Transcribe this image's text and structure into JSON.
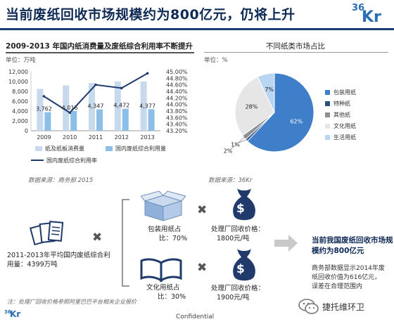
{
  "header": {
    "title": "当前废纸回收市场规模约为800亿元，仍将上升",
    "logo_small": "36",
    "logo_big": "Kr"
  },
  "left_chart": {
    "title": "2009-2013 年国内纸消费量及废纸综合利用率不断提升",
    "unit": "单位：万吨",
    "source": "数据来源：商务部 2015"
  },
  "right_chart": {
    "title": "不同纸类市场占比",
    "unit": "单位：%",
    "source": "数据来源：36Kr"
  },
  "chart_data": [
    {
      "type": "bar",
      "categories": [
        "2009",
        "2010",
        "2011",
        "2012",
        "2013"
      ],
      "series": [
        {
          "name": "纸及纸板消费量",
          "type": "bar",
          "values": [
            8500,
            9200,
            9700,
            10000,
            10000
          ],
          "color": "#c7d9ec"
        },
        {
          "name": "国内废纸综合利用量",
          "type": "bar",
          "values": [
            3762,
            4016,
            4347,
            4472,
            4377
          ],
          "color": "#8cbfe8"
        },
        {
          "name": "国内废纸综合利用率",
          "type": "line",
          "axis": "right",
          "values": [
            44.25,
            43.75,
            44.6,
            44.5,
            44.95
          ],
          "color": "#1f3a6b"
        }
      ],
      "data_labels": [
        "3,762",
        "4,016",
        "4,347",
        "4,472",
        "4,377"
      ],
      "ylim": [
        0,
        12000
      ],
      "yticks": [
        "0",
        "2,000",
        "4,000",
        "6,000",
        "8,000",
        "10,000",
        "12,000"
      ],
      "y2lim": [
        43.2,
        45.0
      ],
      "y2ticks": [
        "43.20%",
        "43.40%",
        "43.60%",
        "43.80%",
        "44.00%",
        "44.20%",
        "44.40%",
        "44.60%",
        "44.80%",
        "45.00%"
      ],
      "legend_position": "bottom",
      "grid": false
    },
    {
      "type": "pie",
      "labels": [
        "包装用纸",
        "特种纸",
        "其他纸",
        "文化用纸",
        "生活用纸"
      ],
      "values": [
        62,
        1,
        2,
        28,
        7
      ],
      "value_labels": [
        "62%",
        "1%",
        "2%",
        "28%",
        "7%"
      ],
      "colors": [
        "#3f7fc9",
        "#2d4f7e",
        "#8c8f96",
        "#e6e6e6",
        "#b8d6f1"
      ],
      "legend_position": "right"
    }
  ],
  "calc": {
    "avg_text_1": "2011-2013年平均国内废纸综合利",
    "avg_text_2": "用量：4399万吨",
    "multiply": "✖",
    "pkg_caption_1": "包装用纸占",
    "pkg_caption_2": "比：70%",
    "pkg_price_1": "处理厂回收价格：",
    "pkg_price_2": "1800元/吨",
    "cul_caption_1": "文化用纸占",
    "cul_caption_2": "比：30%",
    "cul_price_1": "处理厂回收价格：",
    "cul_price_2": "1900元/吨",
    "dollar": "$",
    "result_1": "当前我国废纸回收市场规",
    "result_2": "模约为800亿元",
    "note_1": "商务部数据显示2014年废",
    "note_2": "纸回收价值为616亿元，",
    "note_3": "误差在合理范围内"
  },
  "footer": {
    "note": "注：处理厂回收价格参照阿里巴巴平台相关企业报价",
    "logo_small": "36",
    "logo_big": "Kr",
    "confidential": "Confidential",
    "wechat_name": "捷托维环卫"
  }
}
